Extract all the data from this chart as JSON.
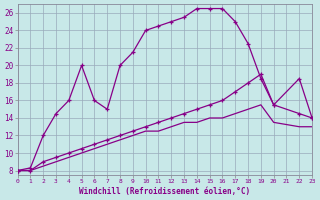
{
  "xlabel": "Windchill (Refroidissement éolien,°C)",
  "bg_color": "#c8e8e8",
  "line_color": "#880088",
  "grid_color": "#99aabb",
  "xlim": [
    0,
    23
  ],
  "ylim": [
    7.5,
    27
  ],
  "xticks": [
    0,
    1,
    2,
    3,
    4,
    5,
    6,
    7,
    8,
    9,
    10,
    11,
    12,
    13,
    14,
    15,
    16,
    17,
    18,
    19,
    20,
    21,
    22,
    23
  ],
  "yticks": [
    8,
    10,
    12,
    14,
    16,
    18,
    20,
    22,
    24,
    26
  ],
  "curve1_x": [
    0,
    1,
    2,
    3,
    4,
    5,
    6,
    7,
    8,
    9,
    10,
    11,
    12,
    13,
    14,
    15,
    16,
    17,
    18,
    19,
    20,
    22,
    23
  ],
  "curve1_y": [
    8,
    8.3,
    12,
    14.5,
    16,
    20,
    16,
    15,
    20,
    21.5,
    24,
    24.5,
    25,
    25.5,
    26.5,
    26.5,
    26.5,
    25,
    22.5,
    18.5,
    15.5,
    18.5,
    14
  ],
  "curve2_x": [
    0,
    1,
    2,
    3,
    4,
    5,
    6,
    7,
    8,
    9,
    10,
    11,
    12,
    13,
    14,
    15,
    16,
    17,
    18,
    19,
    20,
    22,
    23
  ],
  "curve2_y": [
    8,
    8,
    9,
    9.5,
    10,
    10.5,
    11,
    11.5,
    12,
    12.5,
    13,
    13.5,
    14,
    14.5,
    15,
    15.5,
    16,
    17,
    18,
    19,
    15.5,
    14.5,
    14
  ],
  "curve3_x": [
    0,
    1,
    2,
    3,
    4,
    5,
    6,
    7,
    8,
    9,
    10,
    11,
    12,
    13,
    14,
    15,
    16,
    17,
    18,
    19,
    20,
    22,
    23
  ],
  "curve3_y": [
    8,
    8,
    8.5,
    9,
    9.5,
    10,
    10.5,
    11,
    11.5,
    12,
    12.5,
    12.5,
    13,
    13.5,
    13.5,
    14,
    14,
    14.5,
    15,
    15.5,
    13.5,
    13,
    13
  ]
}
